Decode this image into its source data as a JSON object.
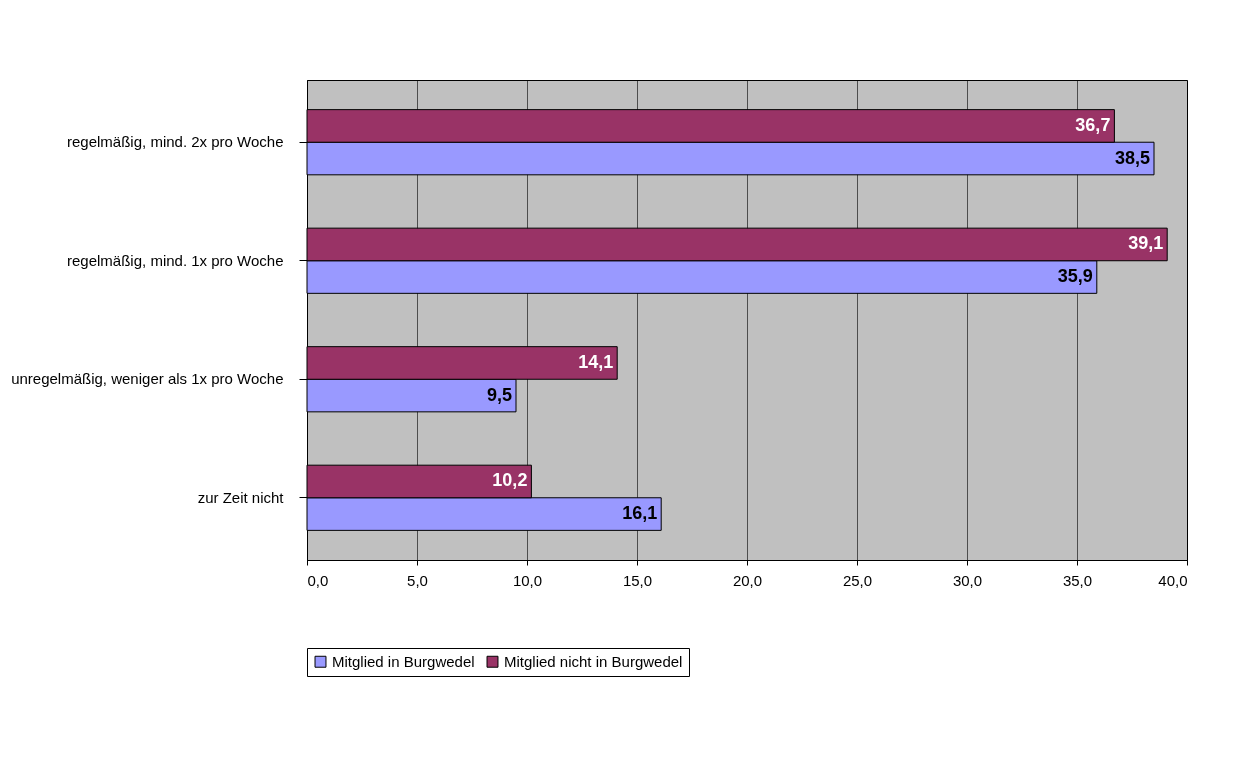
{
  "chart_data": {
    "type": "bar",
    "orientation": "horizontal",
    "categories": [
      "regelmäßig, mind. 2x pro Woche",
      "regelmäßig, mind. 1x pro Woche",
      "unregelmäßig, weniger als 1x pro Woche",
      "zur Zeit nicht"
    ],
    "series": [
      {
        "name": "Mitglied in Burgwedel",
        "color": "#9999ff",
        "values": [
          38.5,
          35.9,
          9.5,
          16.1
        ],
        "value_labels": [
          "38,5",
          "35,9",
          "9,5",
          "16,1"
        ]
      },
      {
        "name": "Mitglied nicht in Burgwedel",
        "color": "#993366",
        "values": [
          36.7,
          39.1,
          14.1,
          10.2
        ],
        "value_labels": [
          "36,7",
          "39,1",
          "14,1",
          "10,2"
        ]
      }
    ],
    "xlim": [
      0,
      40
    ],
    "xticks": [
      {
        "value": 0,
        "label": "0,0"
      },
      {
        "value": 5,
        "label": "5,0"
      },
      {
        "value": 10,
        "label": "10,0"
      },
      {
        "value": 15,
        "label": "15,0"
      },
      {
        "value": 20,
        "label": "20,0"
      },
      {
        "value": 25,
        "label": "25,0"
      },
      {
        "value": 30,
        "label": "30,0"
      },
      {
        "value": 35,
        "label": "35,0"
      },
      {
        "value": 40,
        "label": "40,0"
      }
    ],
    "grid": "x",
    "legend": "bottom"
  }
}
